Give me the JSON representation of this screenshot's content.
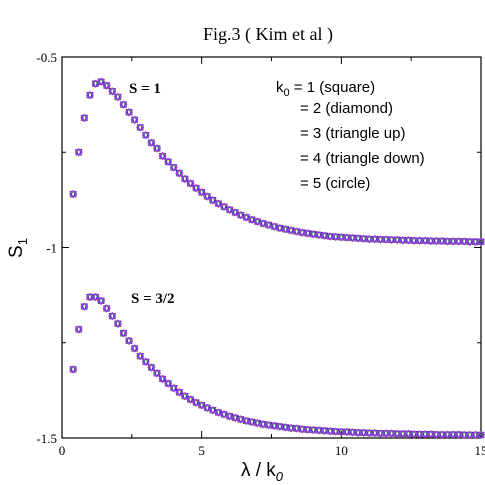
{
  "figure_title": "Fig.3 ( Kim et al )",
  "chart_data": {
    "type": "scatter",
    "xlabel": "λ / k0",
    "xlabel_parts": {
      "main": "λ / k",
      "sub": "0"
    },
    "ylabel": "S1",
    "ylabel_parts": {
      "main": "S",
      "sub": "1"
    },
    "xlim": [
      0,
      15
    ],
    "ylim": [
      -1.5,
      -0.5
    ],
    "xticks": [
      0,
      5,
      10,
      15
    ],
    "xtick_labels": [
      "0",
      "5",
      "10",
      "15"
    ],
    "yticks": [
      -1.5,
      -1,
      -0.5
    ],
    "ytick_labels": [
      "-1.5",
      "-1",
      "-0.5"
    ],
    "grid": false,
    "legend": {
      "placement": "top-right",
      "lines": [
        {
          "prefix": "k",
          "sub": "0",
          "text": " = 1 (square)"
        },
        {
          "prefix": "",
          "sub": "",
          "text": "= 2 (diamond)"
        },
        {
          "prefix": "",
          "sub": "",
          "text": "= 3 (triangle up)"
        },
        {
          "prefix": "",
          "sub": "",
          "text": "= 4 (triangle down)"
        },
        {
          "prefix": "",
          "sub": "",
          "text": "= 5 (circle)"
        }
      ]
    },
    "annotations": [
      {
        "text": "S = 1",
        "x": 2.0,
        "y": -0.56
      },
      {
        "text": "S = 3/2",
        "x": 2.1,
        "y": -1.115
      }
    ],
    "marker_colors": [
      "#000000",
      "#e02020",
      "#20a020",
      "#2020d0",
      "#a040e0"
    ],
    "series": [
      {
        "label": "S = 1",
        "x": [
          0.4,
          0.6,
          0.8,
          1.0,
          1.2,
          1.4,
          1.6,
          1.8,
          2.0,
          2.2,
          2.4,
          2.6,
          2.8,
          3.0,
          3.2,
          3.4,
          3.6,
          3.8,
          4.0,
          4.2,
          4.4,
          4.6,
          4.8,
          5.0,
          5.2,
          5.4,
          5.6,
          5.8,
          6.0,
          6.2,
          6.4,
          6.6,
          6.8,
          7.0,
          7.2,
          7.4,
          7.6,
          7.8,
          8.0,
          8.2,
          8.4,
          8.6,
          8.8,
          9.0,
          9.2,
          9.4,
          9.6,
          9.8,
          10.0,
          10.2,
          10.4,
          10.6,
          10.8,
          11.0,
          11.2,
          11.4,
          11.6,
          11.8,
          12.0,
          12.2,
          12.4,
          12.6,
          12.8,
          13.0,
          13.2,
          13.4,
          13.6,
          13.8,
          14.0,
          14.2,
          14.4,
          14.6,
          14.8,
          15.0
        ],
        "y": [
          -0.86,
          -0.75,
          -0.66,
          -0.6,
          -0.57,
          -0.565,
          -0.575,
          -0.59,
          -0.605,
          -0.625,
          -0.645,
          -0.665,
          -0.685,
          -0.705,
          -0.725,
          -0.74,
          -0.76,
          -0.775,
          -0.79,
          -0.805,
          -0.82,
          -0.832,
          -0.844,
          -0.855,
          -0.866,
          -0.876,
          -0.885,
          -0.893,
          -0.901,
          -0.908,
          -0.915,
          -0.921,
          -0.927,
          -0.932,
          -0.937,
          -0.941,
          -0.945,
          -0.949,
          -0.952,
          -0.955,
          -0.958,
          -0.961,
          -0.963,
          -0.965,
          -0.967,
          -0.969,
          -0.971,
          -0.972,
          -0.973,
          -0.974,
          -0.975,
          -0.976,
          -0.977,
          -0.978,
          -0.978,
          -0.979,
          -0.979,
          -0.98,
          -0.98,
          -0.981,
          -0.981,
          -0.982,
          -0.982,
          -0.982,
          -0.983,
          -0.983,
          -0.983,
          -0.984,
          -0.984,
          -0.984,
          -0.984,
          -0.985,
          -0.985,
          -0.985
        ]
      },
      {
        "label": "S = 3/2",
        "x": [
          0.4,
          0.6,
          0.8,
          1.0,
          1.2,
          1.4,
          1.6,
          1.8,
          2.0,
          2.2,
          2.4,
          2.6,
          2.8,
          3.0,
          3.2,
          3.4,
          3.6,
          3.8,
          4.0,
          4.2,
          4.4,
          4.6,
          4.8,
          5.0,
          5.2,
          5.4,
          5.6,
          5.8,
          6.0,
          6.2,
          6.4,
          6.6,
          6.8,
          7.0,
          7.2,
          7.4,
          7.6,
          7.8,
          8.0,
          8.2,
          8.4,
          8.6,
          8.8,
          9.0,
          9.2,
          9.4,
          9.6,
          9.8,
          10.0,
          10.2,
          10.4,
          10.6,
          10.8,
          11.0,
          11.2,
          11.4,
          11.6,
          11.8,
          12.0,
          12.2,
          12.4,
          12.6,
          12.8,
          13.0,
          13.2,
          13.4,
          13.6,
          13.8,
          14.0,
          14.2,
          14.4,
          14.6,
          14.8,
          15.0
        ],
        "y": [
          -1.32,
          -1.215,
          -1.155,
          -1.13,
          -1.13,
          -1.14,
          -1.16,
          -1.18,
          -1.2,
          -1.225,
          -1.245,
          -1.265,
          -1.285,
          -1.3,
          -1.315,
          -1.33,
          -1.345,
          -1.357,
          -1.369,
          -1.38,
          -1.39,
          -1.399,
          -1.407,
          -1.414,
          -1.421,
          -1.427,
          -1.433,
          -1.438,
          -1.443,
          -1.447,
          -1.451,
          -1.455,
          -1.458,
          -1.461,
          -1.464,
          -1.466,
          -1.468,
          -1.47,
          -1.472,
          -1.474,
          -1.475,
          -1.477,
          -1.478,
          -1.479,
          -1.48,
          -1.481,
          -1.482,
          -1.483,
          -1.484,
          -1.484,
          -1.485,
          -1.486,
          -1.486,
          -1.487,
          -1.487,
          -1.488,
          -1.488,
          -1.488,
          -1.489,
          -1.489,
          -1.489,
          -1.49,
          -1.49,
          -1.49,
          -1.49,
          -1.491,
          -1.491,
          -1.491,
          -1.491,
          -1.491,
          -1.492,
          -1.492,
          -1.492,
          -1.492
        ]
      }
    ]
  }
}
